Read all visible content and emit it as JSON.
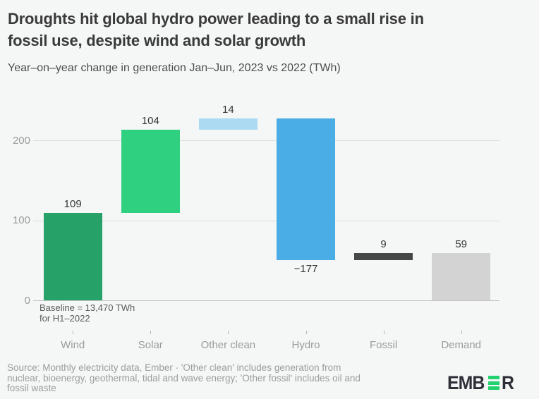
{
  "header": {
    "title_lines": [
      "Droughts hit global hydro power leading to a small rise in",
      "fossil use, despite wind and solar growth"
    ],
    "subtitle": "Year–on–year change in generation Jan–Jun, 2023 vs 2022 (TWh)"
  },
  "chart_data": {
    "type": "bar",
    "subtype": "waterfall",
    "title": "Droughts hit global hydro power leading to a small rise in fossil use, despite wind and solar growth",
    "subtitle": "Year–on–year change in generation Jan–Jun, 2023 vs 2022 (TWh)",
    "unit": "TWh",
    "categories": [
      "Wind",
      "Solar",
      "Other clean",
      "Hydro",
      "Fossil",
      "Demand"
    ],
    "values": [
      109,
      104,
      14,
      -177,
      9,
      59
    ],
    "bar_ranges": [
      [
        0,
        109
      ],
      [
        109,
        213
      ],
      [
        213,
        227
      ],
      [
        50,
        227
      ],
      [
        50,
        59
      ],
      [
        0,
        59
      ]
    ],
    "value_labels": [
      "109",
      "104",
      "14",
      "−177",
      "9",
      "59"
    ],
    "bar_colors": [
      "#26a269",
      "#2fd180",
      "#abdaf2",
      "#4bade6",
      "#474747",
      "#d3d3d3"
    ],
    "ylim": [
      0,
      235
    ],
    "yticks": [
      0,
      100,
      200
    ],
    "ytick_labels": [
      "0",
      "100",
      "200"
    ],
    "grid": "horizontal",
    "legend": "none",
    "baseline_note_lines": [
      "Baseline = 13,470 TWh",
      "for H1–2022"
    ]
  },
  "footer": {
    "source_lines": [
      "Source: Monthly electricity data, Ember · 'Other clean' includes generation from",
      "nuclear, bioenergy, geothermal, tidal and wave energy; 'Other fossil' includes oil and",
      "fossil waste"
    ],
    "logo": {
      "name": "EMBER",
      "prefix": "EMB",
      "suffix": "R"
    }
  },
  "colors": {
    "background": "#f5f6f6",
    "title": "#3a3a3a",
    "subtitle": "#4e4e4e",
    "grid_line": "#dcdcdc",
    "axis_line": "#c3c3c3",
    "axis_label": "#9b9b9b",
    "value_label": "#363636",
    "note": "#595959",
    "footer_text": "#9c9c9c",
    "logo_dark": "#2e3038",
    "logo_green": "#23d16f"
  }
}
